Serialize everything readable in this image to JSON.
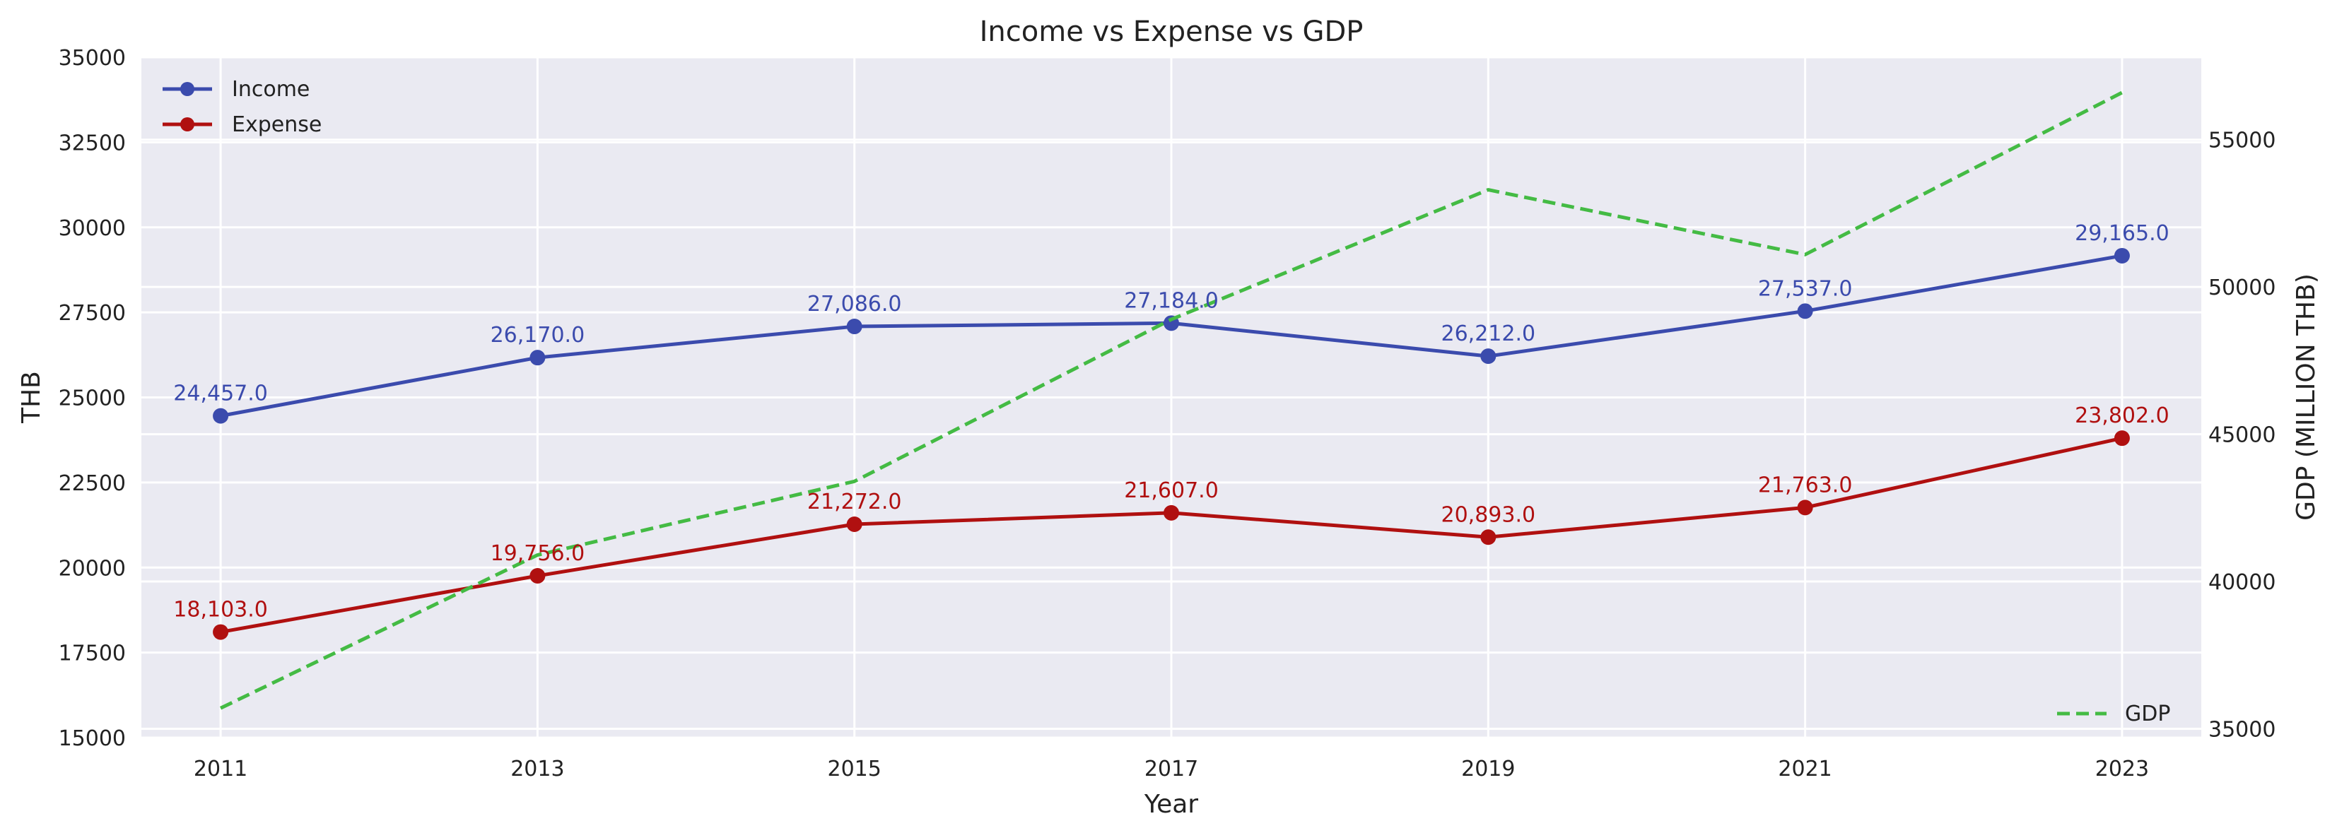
{
  "chart_data": {
    "type": "line",
    "title": "Income vs Expense vs GDP",
    "xlabel": "Year",
    "ylabel": "THB",
    "y2label": "GDP (MILLION THB)",
    "x": [
      2011,
      2013,
      2015,
      2017,
      2019,
      2021,
      2023
    ],
    "xticks": [
      "2011",
      "2013",
      "2015",
      "2017",
      "2019",
      "2021",
      "2023"
    ],
    "xlim": [
      2010.5,
      2023.5
    ],
    "ylim": [
      15000,
      35000
    ],
    "yticks": [
      "15000",
      "17500",
      "20000",
      "22500",
      "25000",
      "27500",
      "30000",
      "32500",
      "35000"
    ],
    "y2lim": [
      34700,
      57800
    ],
    "y2ticks": [
      "35000",
      "40000",
      "45000",
      "50000",
      "55000"
    ],
    "grid": true,
    "series": [
      {
        "name": "Income",
        "axis": "left",
        "color": "#3b4bad",
        "style": "solid-marker",
        "values": [
          24457,
          26170,
          27086,
          27184,
          26212,
          27537,
          29165
        ],
        "labels": [
          "24,457.0",
          "26,170.0",
          "27,086.0",
          "27,184.0",
          "26,212.0",
          "27,537.0",
          "29,165.0"
        ]
      },
      {
        "name": "Expense",
        "axis": "left",
        "color": "#b01010",
        "style": "solid-marker",
        "values": [
          18103,
          19756,
          21272,
          21607,
          20893,
          21763,
          23802
        ],
        "labels": [
          "18,103.0",
          "19,756.0",
          "21,272.0",
          "21,607.0",
          "20,893.0",
          "21,763.0",
          "23,802.0"
        ]
      },
      {
        "name": "GDP",
        "axis": "right",
        "color": "#44bb44",
        "style": "dashed",
        "values": [
          35700,
          40900,
          43400,
          48900,
          53300,
          51100,
          56600
        ]
      }
    ],
    "legend_left": "top-left",
    "legend_right": "bottom-right"
  }
}
